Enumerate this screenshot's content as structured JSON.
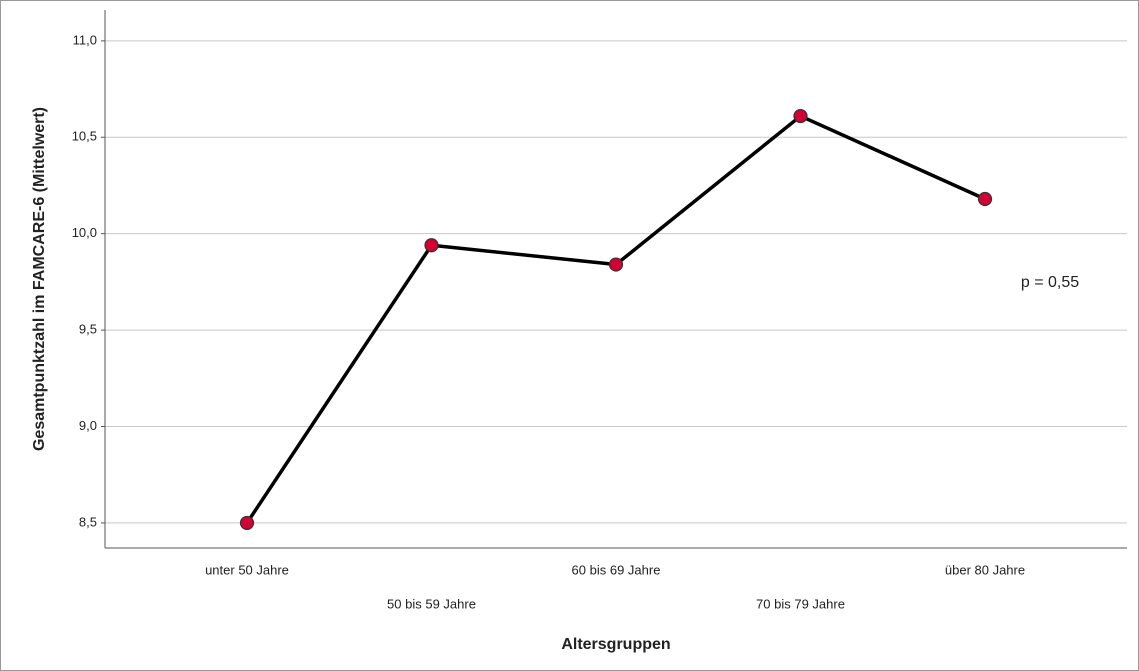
{
  "chart_data": {
    "type": "line",
    "y_label": "Gesamtpunktzahl im FAMCARE-6 (Mittelwert)",
    "x_label": "Altersgruppen",
    "annotation": "p = 0,55",
    "categories": [
      "unter 50 Jahre",
      "50 bis 59 Jahre",
      "60 bis 69 Jahre",
      "70 bis 79 Jahre",
      "über 80 Jahre"
    ],
    "values": [
      8.5,
      9.94,
      9.84,
      10.61,
      10.18
    ],
    "color": "#000000",
    "marker_color": "#d20033",
    "ylim": [
      8.37,
      11.16
    ],
    "yticks": [
      {
        "value": 8.5,
        "label": "8,5"
      },
      {
        "value": 9,
        "label": "9,0"
      },
      {
        "value": 9.5,
        "label": "9,5"
      },
      {
        "value": 10,
        "label": "10,0"
      },
      {
        "value": 10.5,
        "label": "10,5"
      },
      {
        "value": 11,
        "label": "11,0"
      }
    ],
    "grid": true
  }
}
